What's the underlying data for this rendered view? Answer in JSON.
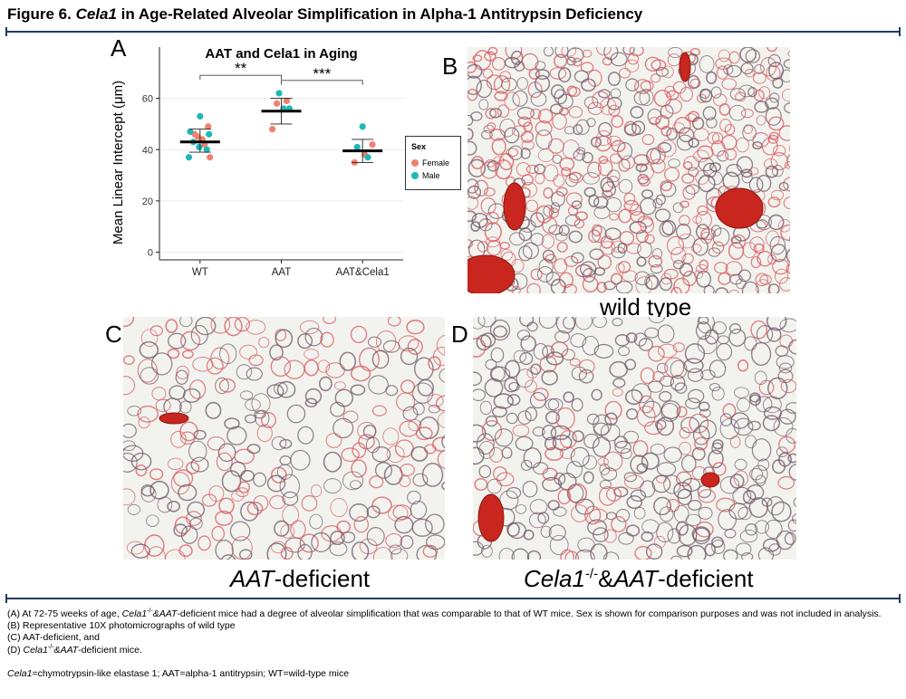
{
  "figure": {
    "title_prefix": "Figure 6. ",
    "title_italic": "Cela1",
    "title_rest": " in Age-Related Alveolar Simplification in Alpha-1 Antitrypsin Deficiency"
  },
  "panels": {
    "a_letter": "A",
    "b_letter": "B",
    "c_letter": "C",
    "d_letter": "D",
    "b_caption": "wild type",
    "c_caption_italic": "AAT",
    "c_caption_rest": "-deficient",
    "d_caption_italic1": "Cela1",
    "d_caption_sup": "-/-",
    "d_caption_mid": "&",
    "d_caption_italic2": "AAT",
    "d_caption_rest": "-deficient"
  },
  "chart_data": {
    "type": "scatter",
    "title": "AAT and Cela1 in Aging",
    "ylabel": "Mean Linear Intercept (μm)",
    "xlabel": "",
    "categories": [
      "WT",
      "AAT",
      "AAT&Cela1"
    ],
    "yticks": [
      0,
      20,
      40,
      60
    ],
    "ylim": [
      -3,
      80
    ],
    "grid": true,
    "legend_title": "Sex",
    "legend_position": "right",
    "significance": [
      {
        "from": "WT",
        "to": "AAT",
        "label": "**",
        "y": 69
      },
      {
        "from": "AAT",
        "to": "AAT&Cela1",
        "label": "***",
        "y": 67
      }
    ],
    "summary": [
      {
        "category": "WT",
        "mean": 43,
        "lower": 39,
        "upper": 48
      },
      {
        "category": "AAT",
        "mean": 55,
        "lower": 50,
        "upper": 60
      },
      {
        "category": "AAT&Cela1",
        "mean": 39.5,
        "lower": 35,
        "upper": 44
      }
    ],
    "series": [
      {
        "name": "Female",
        "color": "#F08070",
        "points": [
          {
            "category": "WT",
            "jitter": -0.12,
            "y": 46
          },
          {
            "category": "WT",
            "jitter": 0.05,
            "y": 44
          },
          {
            "category": "WT",
            "jitter": 0.1,
            "y": 42
          },
          {
            "category": "WT",
            "jitter": 0.18,
            "y": 49
          },
          {
            "category": "WT",
            "jitter": 0.22,
            "y": 37
          },
          {
            "category": "WT",
            "jitter": -0.05,
            "y": 45
          },
          {
            "category": "AAT",
            "jitter": -0.1,
            "y": 58
          },
          {
            "category": "AAT",
            "jitter": 0.12,
            "y": 59
          },
          {
            "category": "AAT",
            "jitter": -0.2,
            "y": 48
          },
          {
            "category": "AAT&Cela1",
            "jitter": -0.18,
            "y": 35
          },
          {
            "category": "AAT&Cela1",
            "jitter": 0.22,
            "y": 42
          },
          {
            "category": "AAT&Cela1",
            "jitter": 0.05,
            "y": 38
          }
        ]
      },
      {
        "name": "Male",
        "color": "#1FB8B8",
        "points": [
          {
            "category": "WT",
            "jitter": -0.22,
            "y": 47
          },
          {
            "category": "WT",
            "jitter": -0.15,
            "y": 43
          },
          {
            "category": "WT",
            "jitter": 0.0,
            "y": 53
          },
          {
            "category": "WT",
            "jitter": -0.25,
            "y": 37
          },
          {
            "category": "WT",
            "jitter": 0.15,
            "y": 40
          },
          {
            "category": "WT",
            "jitter": 0.2,
            "y": 46
          },
          {
            "category": "WT",
            "jitter": -0.02,
            "y": 41
          },
          {
            "category": "AAT",
            "jitter": -0.05,
            "y": 62
          },
          {
            "category": "AAT",
            "jitter": 0.05,
            "y": 56
          },
          {
            "category": "AAT",
            "jitter": 0.18,
            "y": 56
          },
          {
            "category": "AAT&Cela1",
            "jitter": -0.12,
            "y": 41
          },
          {
            "category": "AAT&Cela1",
            "jitter": 0.0,
            "y": 49
          },
          {
            "category": "AAT&Cela1",
            "jitter": 0.12,
            "y": 37
          }
        ]
      }
    ]
  },
  "notes": {
    "a_pre": "(A) At 72-75 weeks of age, ",
    "a_it1": "Cela1",
    "a_sup": "-/-",
    "a_mid": "&",
    "a_it2": "AAT",
    "a_rest": "-deficient mice had a degree of alveolar simplification that was comparable to that of WT mice. Sex is shown for comparison purposes and was not included in analysis.",
    "b": "(B) Representative 10X photomicrographs of wild type",
    "c": "(C) AAT-deficient, and",
    "d_pre": "(D) ",
    "d_it1": "Cela1",
    "d_sup": "-/-",
    "d_mid": "&",
    "d_it2": "AAT",
    "d_rest": "-deficient mice.",
    "abbr_it": "Cela1",
    "abbr_rest": "=chymotrypsin-like elastase 1; AAT=alpha-1 antitrypsin; WT=wild-type mice"
  },
  "colors": {
    "rule": "#1f3a63",
    "tissue_bg": "#f2f3ee",
    "tissue_wall": "#6e5566",
    "tissue_pink": "#d85a60",
    "vessel": "#c8261e"
  }
}
